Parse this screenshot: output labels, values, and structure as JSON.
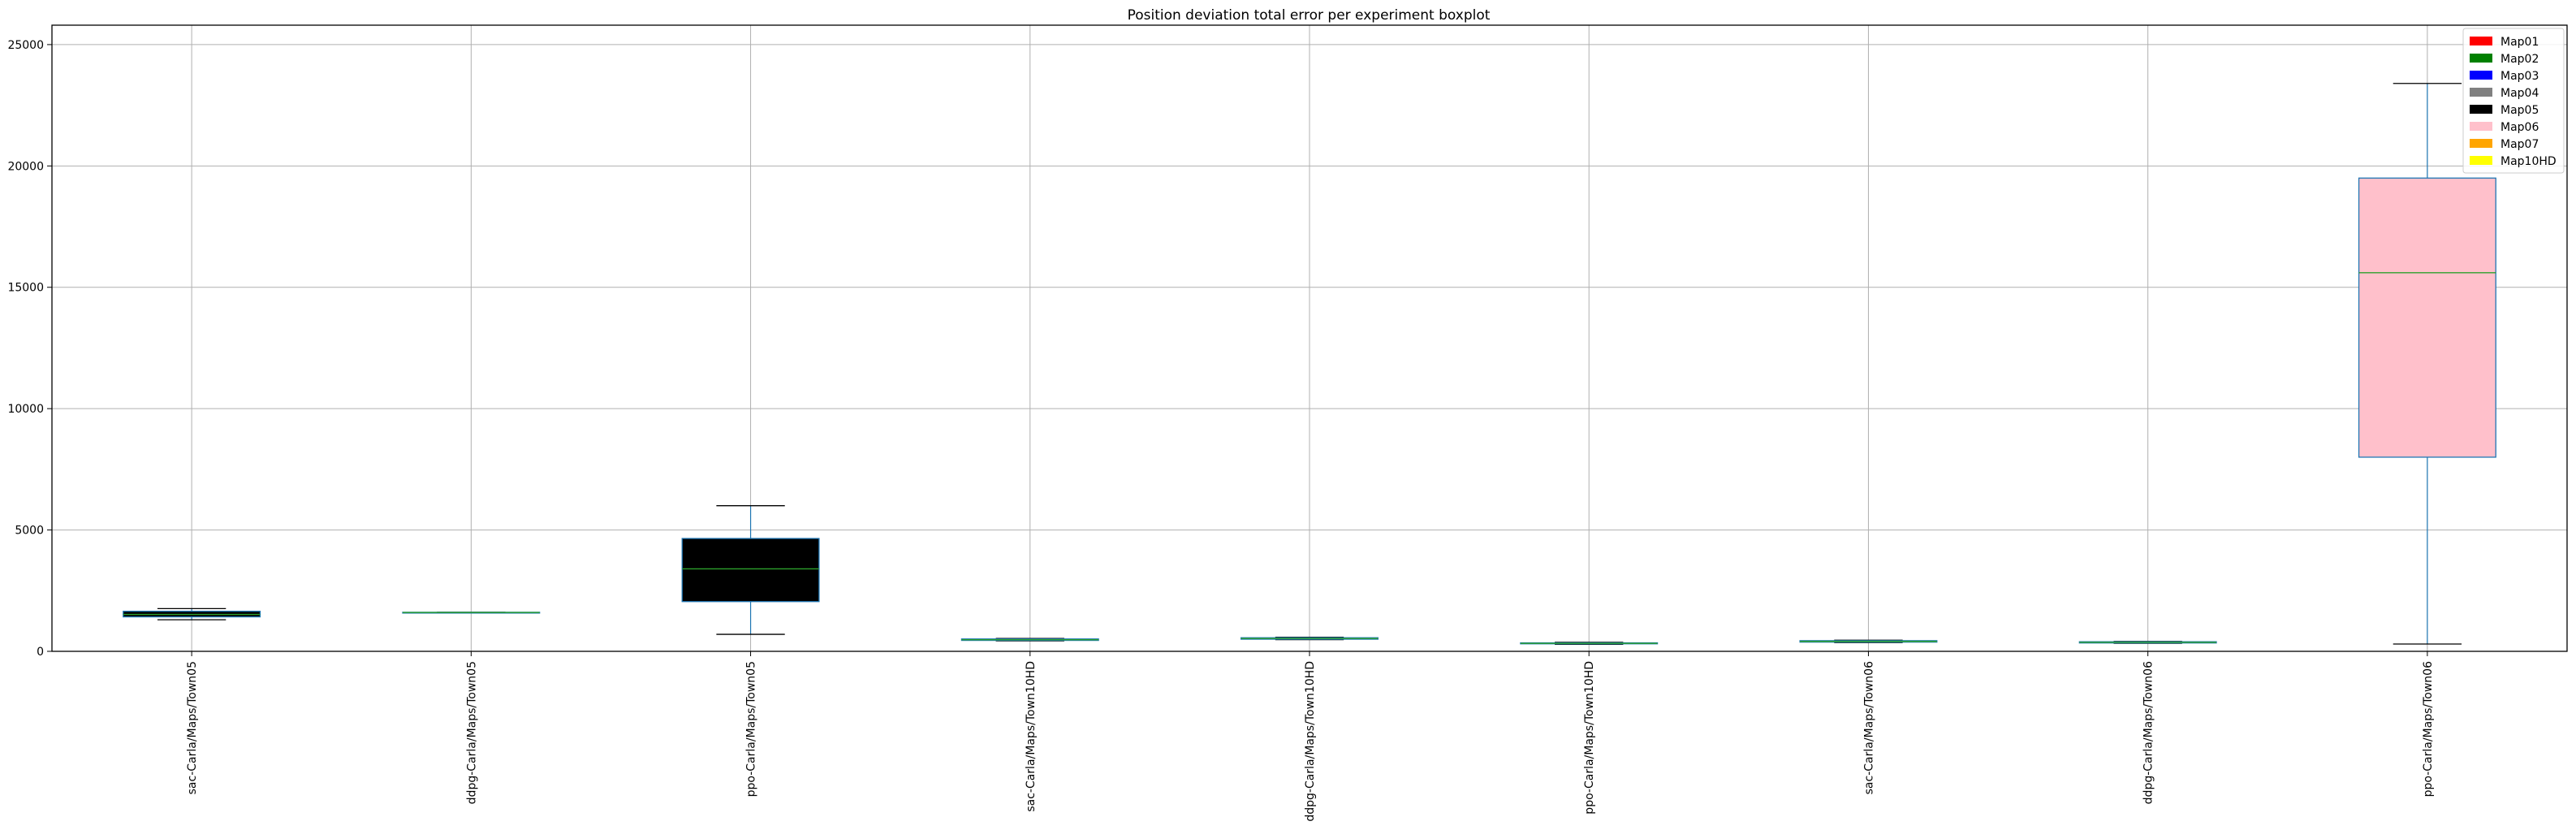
{
  "chart_data": {
    "type": "boxplot",
    "title": "Position deviation total error per experiment boxplot",
    "xlabel": "",
    "ylabel": "",
    "ylim": [
      0,
      25800
    ],
    "yticks": [
      0,
      5000,
      10000,
      15000,
      20000,
      25000
    ],
    "grid": true,
    "legend_position": "top-right",
    "legend": [
      {
        "label": "Map01",
        "color": "#ff0000"
      },
      {
        "label": "Map02",
        "color": "#008000"
      },
      {
        "label": "Map03",
        "color": "#0000ff"
      },
      {
        "label": "Map04",
        "color": "#808080"
      },
      {
        "label": "Map05",
        "color": "#000000"
      },
      {
        "label": "Map06",
        "color": "#ffc0cb"
      },
      {
        "label": "Map07",
        "color": "#ffa500"
      },
      {
        "label": "Map10HD",
        "color": "#ffff00"
      }
    ],
    "categories": [
      "sac-Carla/Maps/Town05",
      "ddpg-Carla/Maps/Town05",
      "ppo-Carla/Maps/Town05",
      "sac-Carla/Maps/Town10HD",
      "ddpg-Carla/Maps/Town10HD",
      "ppo-Carla/Maps/Town10HD",
      "sac-Carla/Maps/Town06",
      "ddpg-Carla/Maps/Town06",
      "ppo-Carla/Maps/Town06"
    ],
    "boxes": [
      {
        "whislo": 1300,
        "q1": 1420,
        "med": 1520,
        "q3": 1650,
        "whishi": 1760,
        "fill": "#000000"
      },
      {
        "whislo": 1590,
        "q1": 1590,
        "med": 1600,
        "q3": 1610,
        "whishi": 1610,
        "fill": "#000000"
      },
      {
        "whislo": 700,
        "q1": 2050,
        "med": 3400,
        "q3": 4650,
        "whishi": 6000,
        "fill": "#000000"
      },
      {
        "whislo": 430,
        "q1": 450,
        "med": 480,
        "q3": 510,
        "whishi": 530,
        "fill": "#000000"
      },
      {
        "whislo": 480,
        "q1": 500,
        "med": 530,
        "q3": 560,
        "whishi": 580,
        "fill": "#000000"
      },
      {
        "whislo": 290,
        "q1": 310,
        "med": 330,
        "q3": 350,
        "whishi": 370,
        "fill": "#000000"
      },
      {
        "whislo": 360,
        "q1": 380,
        "med": 410,
        "q3": 440,
        "whishi": 460,
        "fill": "#000000"
      },
      {
        "whislo": 330,
        "q1": 345,
        "med": 370,
        "q3": 395,
        "whishi": 410,
        "fill": "#000000"
      },
      {
        "whislo": 300,
        "q1": 8000,
        "med": 15600,
        "q3": 19500,
        "whishi": 23400,
        "fill": "#ffc0cb"
      }
    ],
    "box_edge_color": "#1f77b4",
    "median_color": "#2ca02c",
    "cap_color": "#000000"
  }
}
